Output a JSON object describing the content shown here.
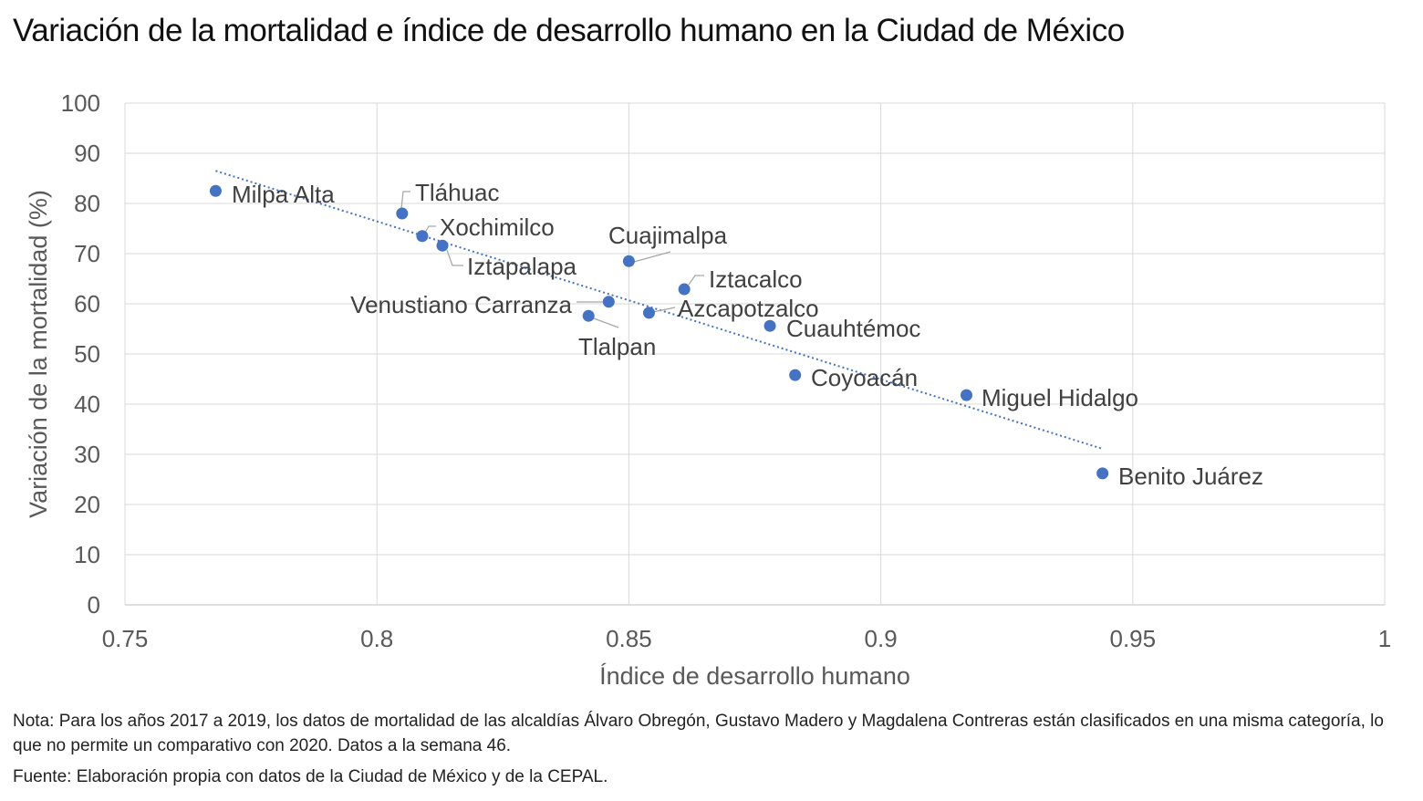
{
  "chart_data": {
    "type": "scatter",
    "title": "Variación de la mortalidad e índice de desarrollo humano en la Ciudad de México",
    "xlabel": "Índice de desarrollo humano",
    "ylabel": "Variación de la mortalidad (%)",
    "xlim": [
      0.75,
      1
    ],
    "ylim": [
      0,
      100
    ],
    "x_ticks": [
      "0.75",
      "0.8",
      "0.85",
      "0.9",
      "0.95",
      "1"
    ],
    "y_ticks": [
      "0",
      "10",
      "20",
      "30",
      "40",
      "50",
      "60",
      "70",
      "80",
      "90",
      "100"
    ],
    "grid": true,
    "legend": "none",
    "point_color": "#4472C4",
    "points": [
      {
        "label": "Milpa Alta",
        "x": 0.768,
        "y": 82.5
      },
      {
        "label": "Tláhuac",
        "x": 0.805,
        "y": 78.0
      },
      {
        "label": "Xochimilco",
        "x": 0.809,
        "y": 73.5
      },
      {
        "label": "Iztapalapa",
        "x": 0.813,
        "y": 71.6
      },
      {
        "label": "Cuajimalpa",
        "x": 0.85,
        "y": 68.5
      },
      {
        "label": "Iztacalco",
        "x": 0.861,
        "y": 62.9
      },
      {
        "label": "Venustiano Carranza",
        "x": 0.846,
        "y": 60.4
      },
      {
        "label": "Azcapotzalco",
        "x": 0.854,
        "y": 58.2
      },
      {
        "label": "Tlalpan",
        "x": 0.842,
        "y": 57.6
      },
      {
        "label": "Cuauhtémoc",
        "x": 0.878,
        "y": 55.6
      },
      {
        "label": "Coyoacán",
        "x": 0.883,
        "y": 45.8
      },
      {
        "label": "Miguel Hidalgo",
        "x": 0.917,
        "y": 41.8
      },
      {
        "label": "Benito Juárez",
        "x": 0.944,
        "y": 26.2
      }
    ],
    "trendline": {
      "type": "linear",
      "style": "dotted",
      "x": [
        0.768,
        0.944
      ],
      "y": [
        86.5,
        31.1
      ]
    }
  },
  "notes": {
    "nota": "Nota: Para los años 2017 a 2019, los datos de mortalidad de las alcaldías Álvaro Obregón, Gustavo Madero y Magdalena Contreras están clasificados en una misma categoría, lo que no permite un comparativo con 2020.  Datos a la semana 46.",
    "fuente": "Fuente: Elaboración propia con datos de la Ciudad de México y de la CEPAL."
  }
}
